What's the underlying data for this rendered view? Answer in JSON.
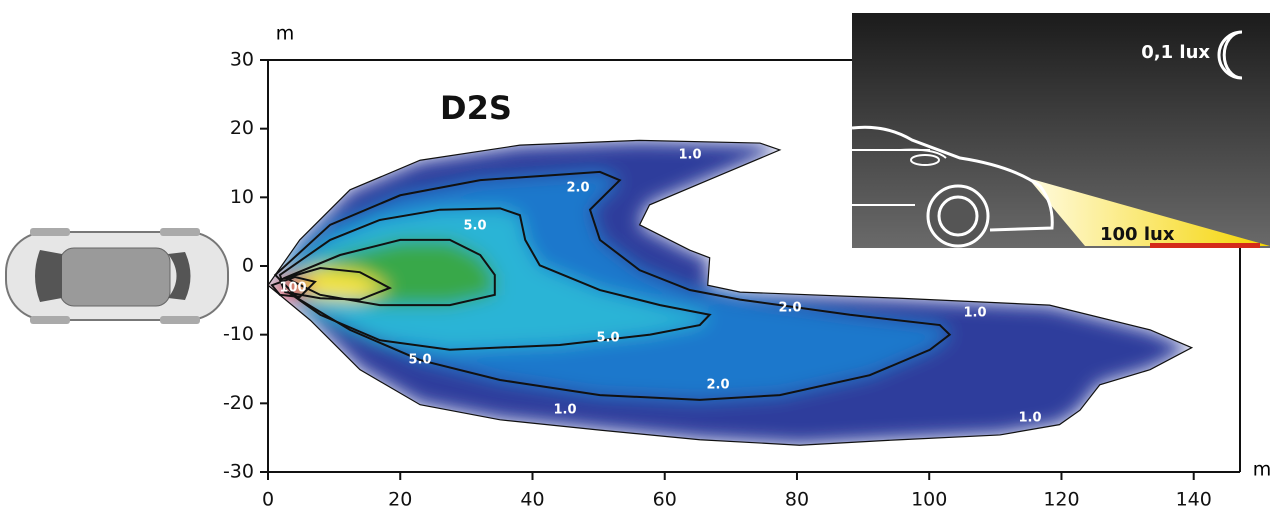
{
  "chart_data": {
    "type": "contour",
    "title": "D2S",
    "x_unit": "m",
    "y_unit": "m",
    "xlim": [
      0,
      147
    ],
    "ylim": [
      -30,
      30
    ],
    "xticks": [
      0,
      20,
      40,
      60,
      80,
      100,
      120,
      140
    ],
    "yticks": [
      30,
      20,
      10,
      0,
      -10,
      -20,
      -30
    ],
    "contours": [
      {
        "name": "1.0",
        "color": "#2e3c9c",
        "x": [
          0,
          4.8,
          12.4,
          23,
          38.1,
          56.2,
          74.4,
          77.4,
          68.3,
          57.7,
          56.2,
          63.8,
          66.8,
          66.5,
          71.4,
          95.6,
          118.2,
          133.4,
          139.7,
          133.4,
          125.8,
          122.8,
          119.7,
          110.7,
          95.6,
          80.4,
          65.3,
          50.2,
          35.1,
          23,
          13.9,
          6.4
        ],
        "y": [
          -2.8,
          3.8,
          11.1,
          15.4,
          17.6,
          18.3,
          17.9,
          16.9,
          13.2,
          8.9,
          6.0,
          2.3,
          1.2,
          -2.8,
          -3.8,
          -4.7,
          -5.7,
          -9.3,
          -11.9,
          -15.1,
          -17.3,
          -21.0,
          -23.1,
          -24.6,
          -25.3,
          -26.1,
          -25.3,
          -23.9,
          -22.4,
          -20.2,
          -15.1,
          -7.9
        ]
      },
      {
        "name": "2.0",
        "color": "#1e78cc",
        "x": [
          1.1,
          9.4,
          20,
          32.1,
          42.6,
          50.2,
          53.2,
          48.7,
          50.2,
          56.2,
          63.8,
          71.4,
          88,
          101.6,
          103.1,
          100.1,
          91,
          77.4,
          65.3,
          50.2,
          35.1,
          23,
          12.4,
          4.8
        ],
        "y": [
          -1.3,
          6.0,
          10.3,
          12.5,
          13.2,
          13.7,
          12.5,
          8.2,
          3.8,
          -0.6,
          -3.5,
          -4.9,
          -7.1,
          -8.6,
          -10.0,
          -12.2,
          -15.9,
          -18.8,
          -19.5,
          -18.8,
          -16.6,
          -13.7,
          -9.3,
          -4.9
        ]
      },
      {
        "name": "5.0",
        "color": "#2bb4d6",
        "x": [
          1.8,
          9.4,
          16.9,
          26,
          35.1,
          38.1,
          38.9,
          41.1,
          50.2,
          59.3,
          66.8,
          65.3,
          57.8,
          44.1,
          27.5,
          16.9,
          7.9,
          2.6
        ],
        "y": [
          -1.3,
          3.8,
          6.7,
          8.2,
          8.4,
          7.4,
          3.8,
          0.1,
          -3.5,
          -5.7,
          -7.1,
          -8.6,
          -10.0,
          -11.5,
          -12.2,
          -10.8,
          -7.1,
          -3.5
        ]
      },
      {
        "color": "#38a848",
        "x": [
          2.6,
          10.9,
          20,
          27.5,
          32.1,
          34.3,
          34.3,
          27.5,
          16.9,
          7.9
        ],
        "y": [
          -1.7,
          1.6,
          3.8,
          3.8,
          1.6,
          -1.3,
          -4.2,
          -5.7,
          -5.7,
          -4.2
        ]
      },
      {
        "color": "#f4e440",
        "x": [
          1.8,
          7.9,
          13.9,
          18.4,
          13.9,
          7.9,
          2.6
        ],
        "y": [
          -2.0,
          -0.3,
          -0.9,
          -3.2,
          -4.9,
          -4.7,
          -3.8
        ]
      },
      {
        "name": "100",
        "color": "#e8432a",
        "x": [
          0.6,
          4.1,
          7.1,
          4.8,
          1.8
        ],
        "y": [
          -2.8,
          -1.6,
          -2.3,
          -4.5,
          -4.2
        ]
      }
    ],
    "annotations": [
      "0,1 lux",
      "100 lux"
    ]
  }
}
